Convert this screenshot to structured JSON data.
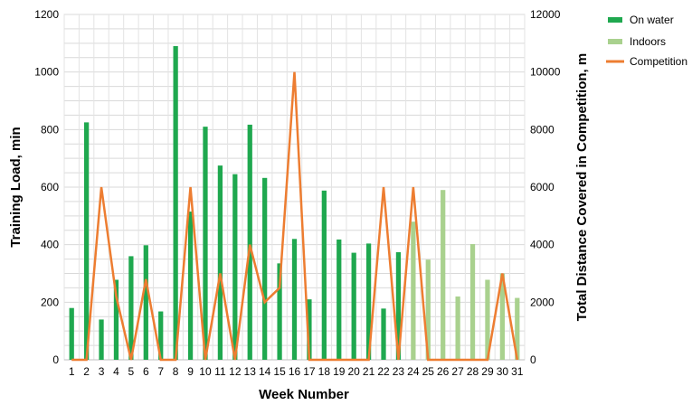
{
  "chart_data": {
    "type": "bar",
    "xlabel": "Week Number",
    "ylabel": "Training Load, min",
    "y2label": "Total Distance Covered in Competition, m",
    "ylim": [
      0,
      1200
    ],
    "y2lim": [
      0,
      12000
    ],
    "yticks": [
      "0",
      "200",
      "400",
      "600",
      "800",
      "1000",
      "1200"
    ],
    "y2ticks": [
      "0",
      "2000",
      "4000",
      "6000",
      "8000",
      "10000",
      "12000"
    ],
    "categories": [
      "1",
      "2",
      "3",
      "4",
      "5",
      "6",
      "7",
      "8",
      "9",
      "10",
      "11",
      "12",
      "13",
      "14",
      "15",
      "16",
      "17",
      "18",
      "19",
      "20",
      "21",
      "22",
      "23",
      "24",
      "25",
      "26",
      "27",
      "28",
      "29",
      "30",
      "31"
    ],
    "grid": true,
    "legend_position": "top-right",
    "series": [
      {
        "name": "On water",
        "type": "bar",
        "axis": "left",
        "color": "#1fa84f",
        "values": [
          180,
          825,
          140,
          278,
          360,
          398,
          168,
          1090,
          515,
          810,
          675,
          645,
          817,
          632,
          335,
          420,
          210,
          588,
          418,
          372,
          404,
          178,
          374,
          0,
          0,
          0,
          0,
          0,
          0,
          0,
          0
        ]
      },
      {
        "name": "Indoors",
        "type": "bar",
        "axis": "left",
        "color": "#a9d18e",
        "values": [
          0,
          0,
          0,
          0,
          0,
          0,
          0,
          0,
          0,
          0,
          0,
          0,
          0,
          0,
          0,
          0,
          0,
          0,
          0,
          0,
          0,
          0,
          0,
          480,
          348,
          590,
          220,
          402,
          278,
          300,
          215
        ]
      },
      {
        "name": "Competition",
        "type": "line",
        "axis": "right",
        "color": "#ed7d31",
        "values": [
          0,
          0,
          6000,
          2200,
          0,
          2800,
          0,
          0,
          6000,
          0,
          3000,
          0,
          4000,
          2000,
          2500,
          10000,
          0,
          0,
          0,
          0,
          0,
          6000,
          0,
          6000,
          0,
          0,
          0,
          0,
          0,
          3000,
          0
        ]
      }
    ]
  }
}
